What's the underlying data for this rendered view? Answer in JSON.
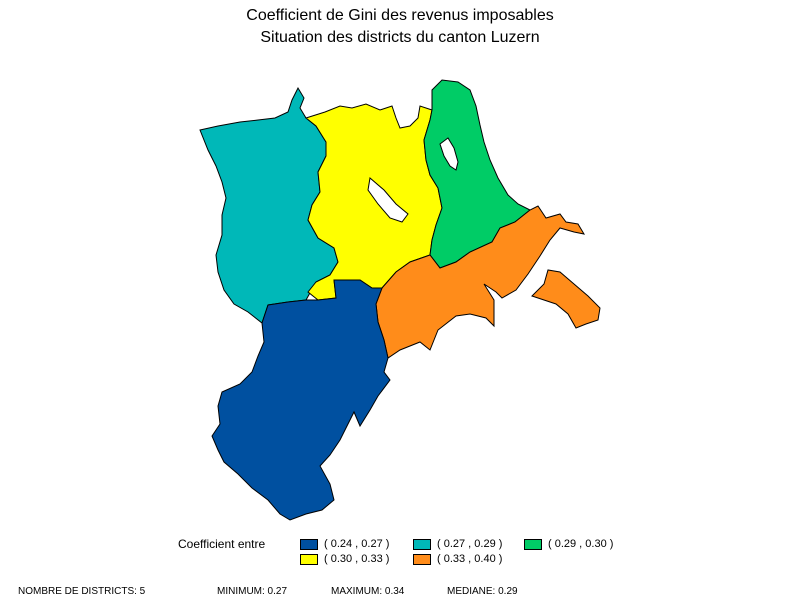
{
  "title": {
    "line1": "Coefficient de Gini des revenus imposables",
    "line2": "Situation des districts du canton Luzern"
  },
  "colors": {
    "class1": "#0050a0",
    "class2": "#00b8b8",
    "class3": "#00cc66",
    "class4": "#ffff00",
    "class5": "#ff8c1a"
  },
  "districts": [
    {
      "class": "class2"
    },
    {
      "class": "class4"
    },
    {
      "class": "class3"
    },
    {
      "class": "class5"
    },
    {
      "class": "class1"
    }
  ],
  "legend": {
    "title": "Coefficient entre",
    "items": [
      {
        "label": "( 0.24 , 0.27 )",
        "color": "#0050a0"
      },
      {
        "label": "( 0.27 , 0.29 )",
        "color": "#00b8b8"
      },
      {
        "label": "( 0.29 , 0.30 )",
        "color": "#00cc66"
      },
      {
        "label": "( 0.30 , 0.33 )",
        "color": "#ffff00"
      },
      {
        "label": "( 0.33 , 0.40 )",
        "color": "#ff8c1a"
      }
    ]
  },
  "footer": {
    "count": "NOMBRE DE DISTRICTS: 5",
    "minimum": "MINIMUM: 0.27",
    "maximum": "MAXIMUM: 0.34",
    "median": "MEDIANE: 0.29"
  }
}
